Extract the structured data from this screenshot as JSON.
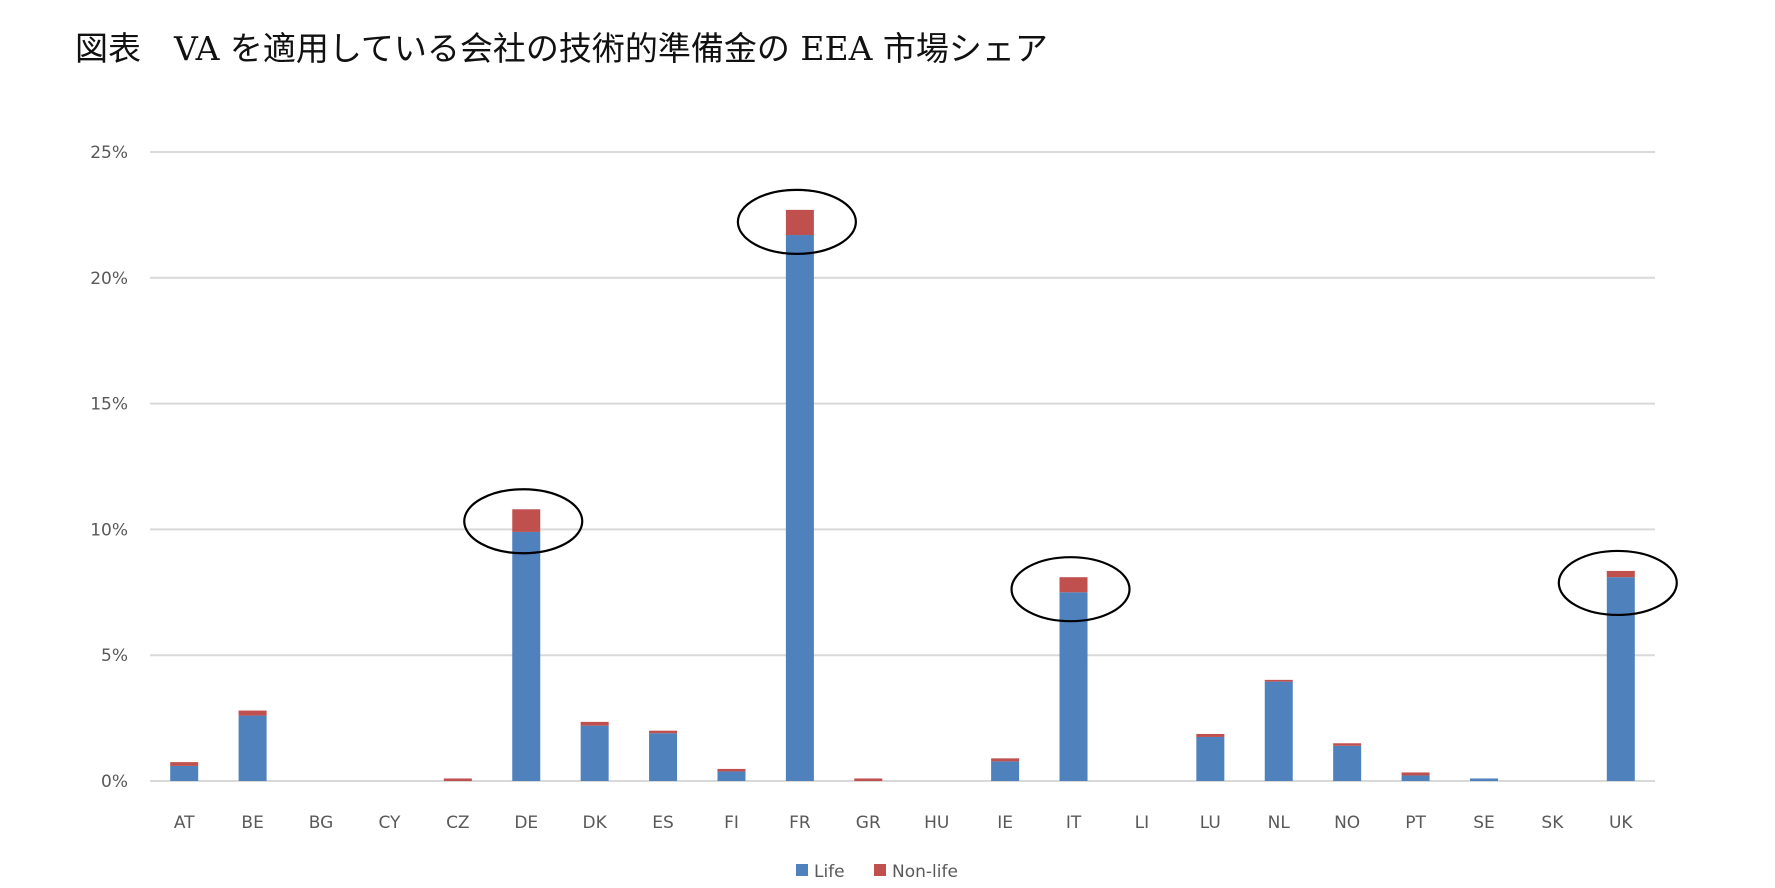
{
  "title": "図表　VA を適用している会社の技術的準備金の EEA 市場シェア",
  "colors": {
    "life": "#4f81bd",
    "non_life": "#c0504d",
    "grid": "#d9d9d9",
    "axis_text": "#595959",
    "highlight_ellipse": "#000000"
  },
  "chart_data": {
    "type": "bar",
    "stacked": true,
    "title": "図表　VA を適用している会社の技術的準備金の EEA 市場シェア",
    "xlabel": "",
    "ylabel": "",
    "ylim": [
      0,
      25
    ],
    "y_ticks": [
      "0%",
      "5%",
      "10%",
      "15%",
      "20%",
      "25%"
    ],
    "y_tick_values": [
      0,
      5,
      10,
      15,
      20,
      25
    ],
    "grid": true,
    "legend_position": "bottom",
    "categories": [
      "AT",
      "BE",
      "BG",
      "CY",
      "CZ",
      "DE",
      "DK",
      "ES",
      "FI",
      "FR",
      "GR",
      "HU",
      "IE",
      "IT",
      "LI",
      "LU",
      "NL",
      "NO",
      "PT",
      "SE",
      "SK",
      "UK"
    ],
    "series": [
      {
        "name": "Life",
        "values": [
          0.6,
          2.6,
          0,
          0,
          0,
          9.9,
          2.2,
          1.9,
          0.38,
          21.7,
          0,
          0,
          0.78,
          7.5,
          0,
          1.75,
          3.95,
          1.4,
          0.22,
          0.1,
          0,
          8.1
        ]
      },
      {
        "name": "Non-life",
        "values": [
          0.15,
          0.2,
          0,
          0,
          0.1,
          0.9,
          0.15,
          0.1,
          0.1,
          1.0,
          0.1,
          0,
          0.12,
          0.6,
          0,
          0.12,
          0.07,
          0.1,
          0.12,
          0,
          0,
          0.25
        ]
      }
    ],
    "annotations": [
      {
        "type": "ellipse",
        "target": "DE"
      },
      {
        "type": "ellipse",
        "target": "FR"
      },
      {
        "type": "ellipse",
        "target": "IT"
      },
      {
        "type": "ellipse",
        "target": "UK"
      }
    ]
  },
  "legend": [
    {
      "label": "Life",
      "color": "#4f81bd"
    },
    {
      "label": "Non-life",
      "color": "#c0504d"
    }
  ]
}
